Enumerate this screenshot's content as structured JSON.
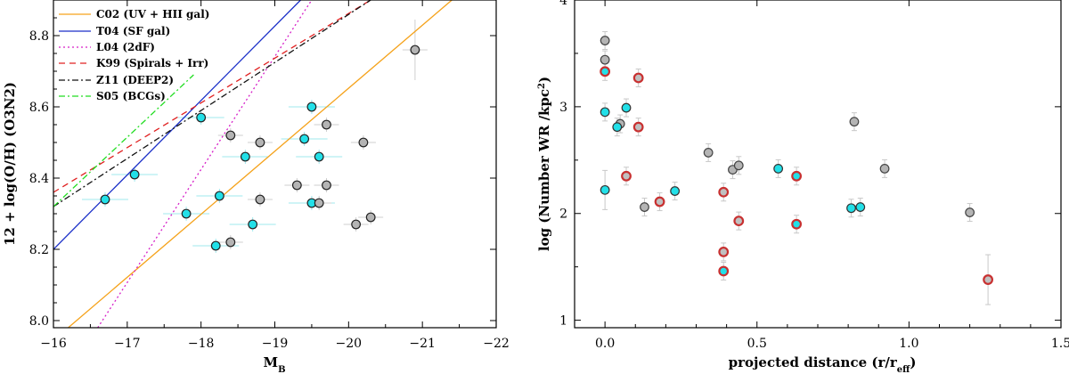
{
  "chart_data": [
    {
      "type": "scatter",
      "xlabel": "M",
      "xlabel_sub": "B",
      "ylabel": "12 + log(O/H) (O3N2)",
      "xlim": [
        -16,
        -22
      ],
      "ylim": [
        7.98,
        8.9
      ],
      "xticks": [
        -16,
        -17,
        -18,
        -19,
        -20,
        -21,
        -22
      ],
      "xtick_labels": [
        "−16",
        "−17",
        "−18",
        "−19",
        "−20",
        "−21",
        "−22"
      ],
      "yticks": [
        8.0,
        8.2,
        8.4,
        8.6,
        8.8
      ],
      "ytick_labels": [
        "8.0",
        "8.2",
        "8.4",
        "8.6",
        "8.8"
      ],
      "legend_position": "top-left",
      "relations": [
        {
          "name": "C02 (UV + HII gal)",
          "color": "#f5a21a",
          "dash": "",
          "x": [
            -16.2,
            -21.4
          ],
          "y": [
            7.98,
            8.9
          ]
        },
        {
          "name": "T04 (SF gal)",
          "color": "#1a2fc8",
          "dash": "",
          "x": [
            -16.0,
            -19.35
          ],
          "y": [
            8.2,
            8.9
          ]
        },
        {
          "name": "L04 (2dF)",
          "color": "#d61fc8",
          "dash": "2,3",
          "x": [
            -16.6,
            -19.5
          ],
          "y": [
            7.98,
            8.9
          ]
        },
        {
          "name": "K99 (Spirals + Irr)",
          "color": "#e02020",
          "dash": "7,5",
          "x": [
            -16.0,
            -20.3
          ],
          "y": [
            8.36,
            8.9
          ]
        },
        {
          "name": "Z11 (DEEP2)",
          "color": "#111111",
          "dash": "7,3,2,3",
          "x": [
            -16.0,
            -20.3
          ],
          "y": [
            8.32,
            8.9
          ]
        },
        {
          "name": "S05 (BCGs)",
          "color": "#22dd22",
          "dash": "7,3,2,3",
          "x": [
            -16.0,
            -17.9
          ],
          "y": [
            8.32,
            8.69
          ]
        }
      ],
      "series": [
        {
          "name": "cyan",
          "color": "#22e0e8",
          "x": [
            -16.7,
            -17.1,
            -17.8,
            -18.0,
            -18.2,
            -18.25,
            -18.6,
            -18.7,
            -19.4,
            -19.5,
            -19.5,
            -19.6
          ],
          "y": [
            8.34,
            8.41,
            8.3,
            8.57,
            8.21,
            8.35,
            8.46,
            8.27,
            8.51,
            8.6,
            8.33,
            8.46
          ]
        },
        {
          "name": "gray",
          "color": "#b4b4b4",
          "x": [
            -18.4,
            -18.4,
            -18.8,
            -18.8,
            -19.3,
            -19.6,
            -19.7,
            -19.7,
            -20.1,
            -20.2,
            -20.3,
            -20.9
          ],
          "y": [
            8.52,
            8.22,
            8.5,
            8.34,
            8.38,
            8.33,
            8.55,
            8.38,
            8.27,
            8.5,
            8.29,
            8.76
          ]
        }
      ]
    },
    {
      "type": "scatter",
      "xlabel": "projected distance (r/r",
      "xlabel_sub": "eff",
      "xlabel_tail": ")",
      "ylabel": "log (Number WR /kpc",
      "ylabel_sup": "2",
      "ylabel_tail": ")",
      "xlim": [
        -0.1,
        1.5
      ],
      "ylim": [
        0.93,
        4.0
      ],
      "xticks": [
        0.0,
        0.5,
        1.0,
        1.5
      ],
      "xtick_labels": [
        "0.0",
        "0.5",
        "1.0",
        "1.5"
      ],
      "yticks": [
        1,
        2,
        3,
        4
      ],
      "ytick_labels": [
        "1",
        "2",
        "3",
        "4"
      ],
      "series": [
        {
          "name": "gray",
          "fill": "#b4b4b4",
          "edge": "#444444",
          "x": [
            0.0,
            0.0,
            0.05,
            0.13,
            0.34,
            0.42,
            0.44,
            0.82,
            0.92,
            1.2
          ],
          "y": [
            3.62,
            3.44,
            2.84,
            2.06,
            2.57,
            2.41,
            2.45,
            2.86,
            2.42,
            2.01
          ]
        },
        {
          "name": "cyan",
          "fill": "#22e0e8",
          "edge": "#333333",
          "x": [
            0.0,
            0.0,
            0.04,
            0.07,
            0.23,
            0.57,
            0.81,
            0.84
          ],
          "y": [
            2.95,
            2.22,
            2.81,
            2.99,
            2.21,
            2.42,
            2.05,
            2.06
          ]
        },
        {
          "name": "red",
          "fill": "#c0c0c0",
          "edge": "#c83030",
          "x": [
            0.07,
            0.11,
            0.11,
            0.18,
            0.39,
            0.39,
            0.44,
            1.26
          ],
          "y": [
            2.35,
            3.27,
            2.81,
            2.11,
            2.2,
            1.64,
            1.93,
            1.38
          ]
        },
        {
          "name": "cyan-red",
          "fill": "#22e0e8",
          "edge": "#c83030",
          "x": [
            0.0,
            0.39,
            0.63,
            0.63
          ],
          "y": [
            3.33,
            1.46,
            2.35,
            1.9
          ]
        }
      ]
    }
  ]
}
